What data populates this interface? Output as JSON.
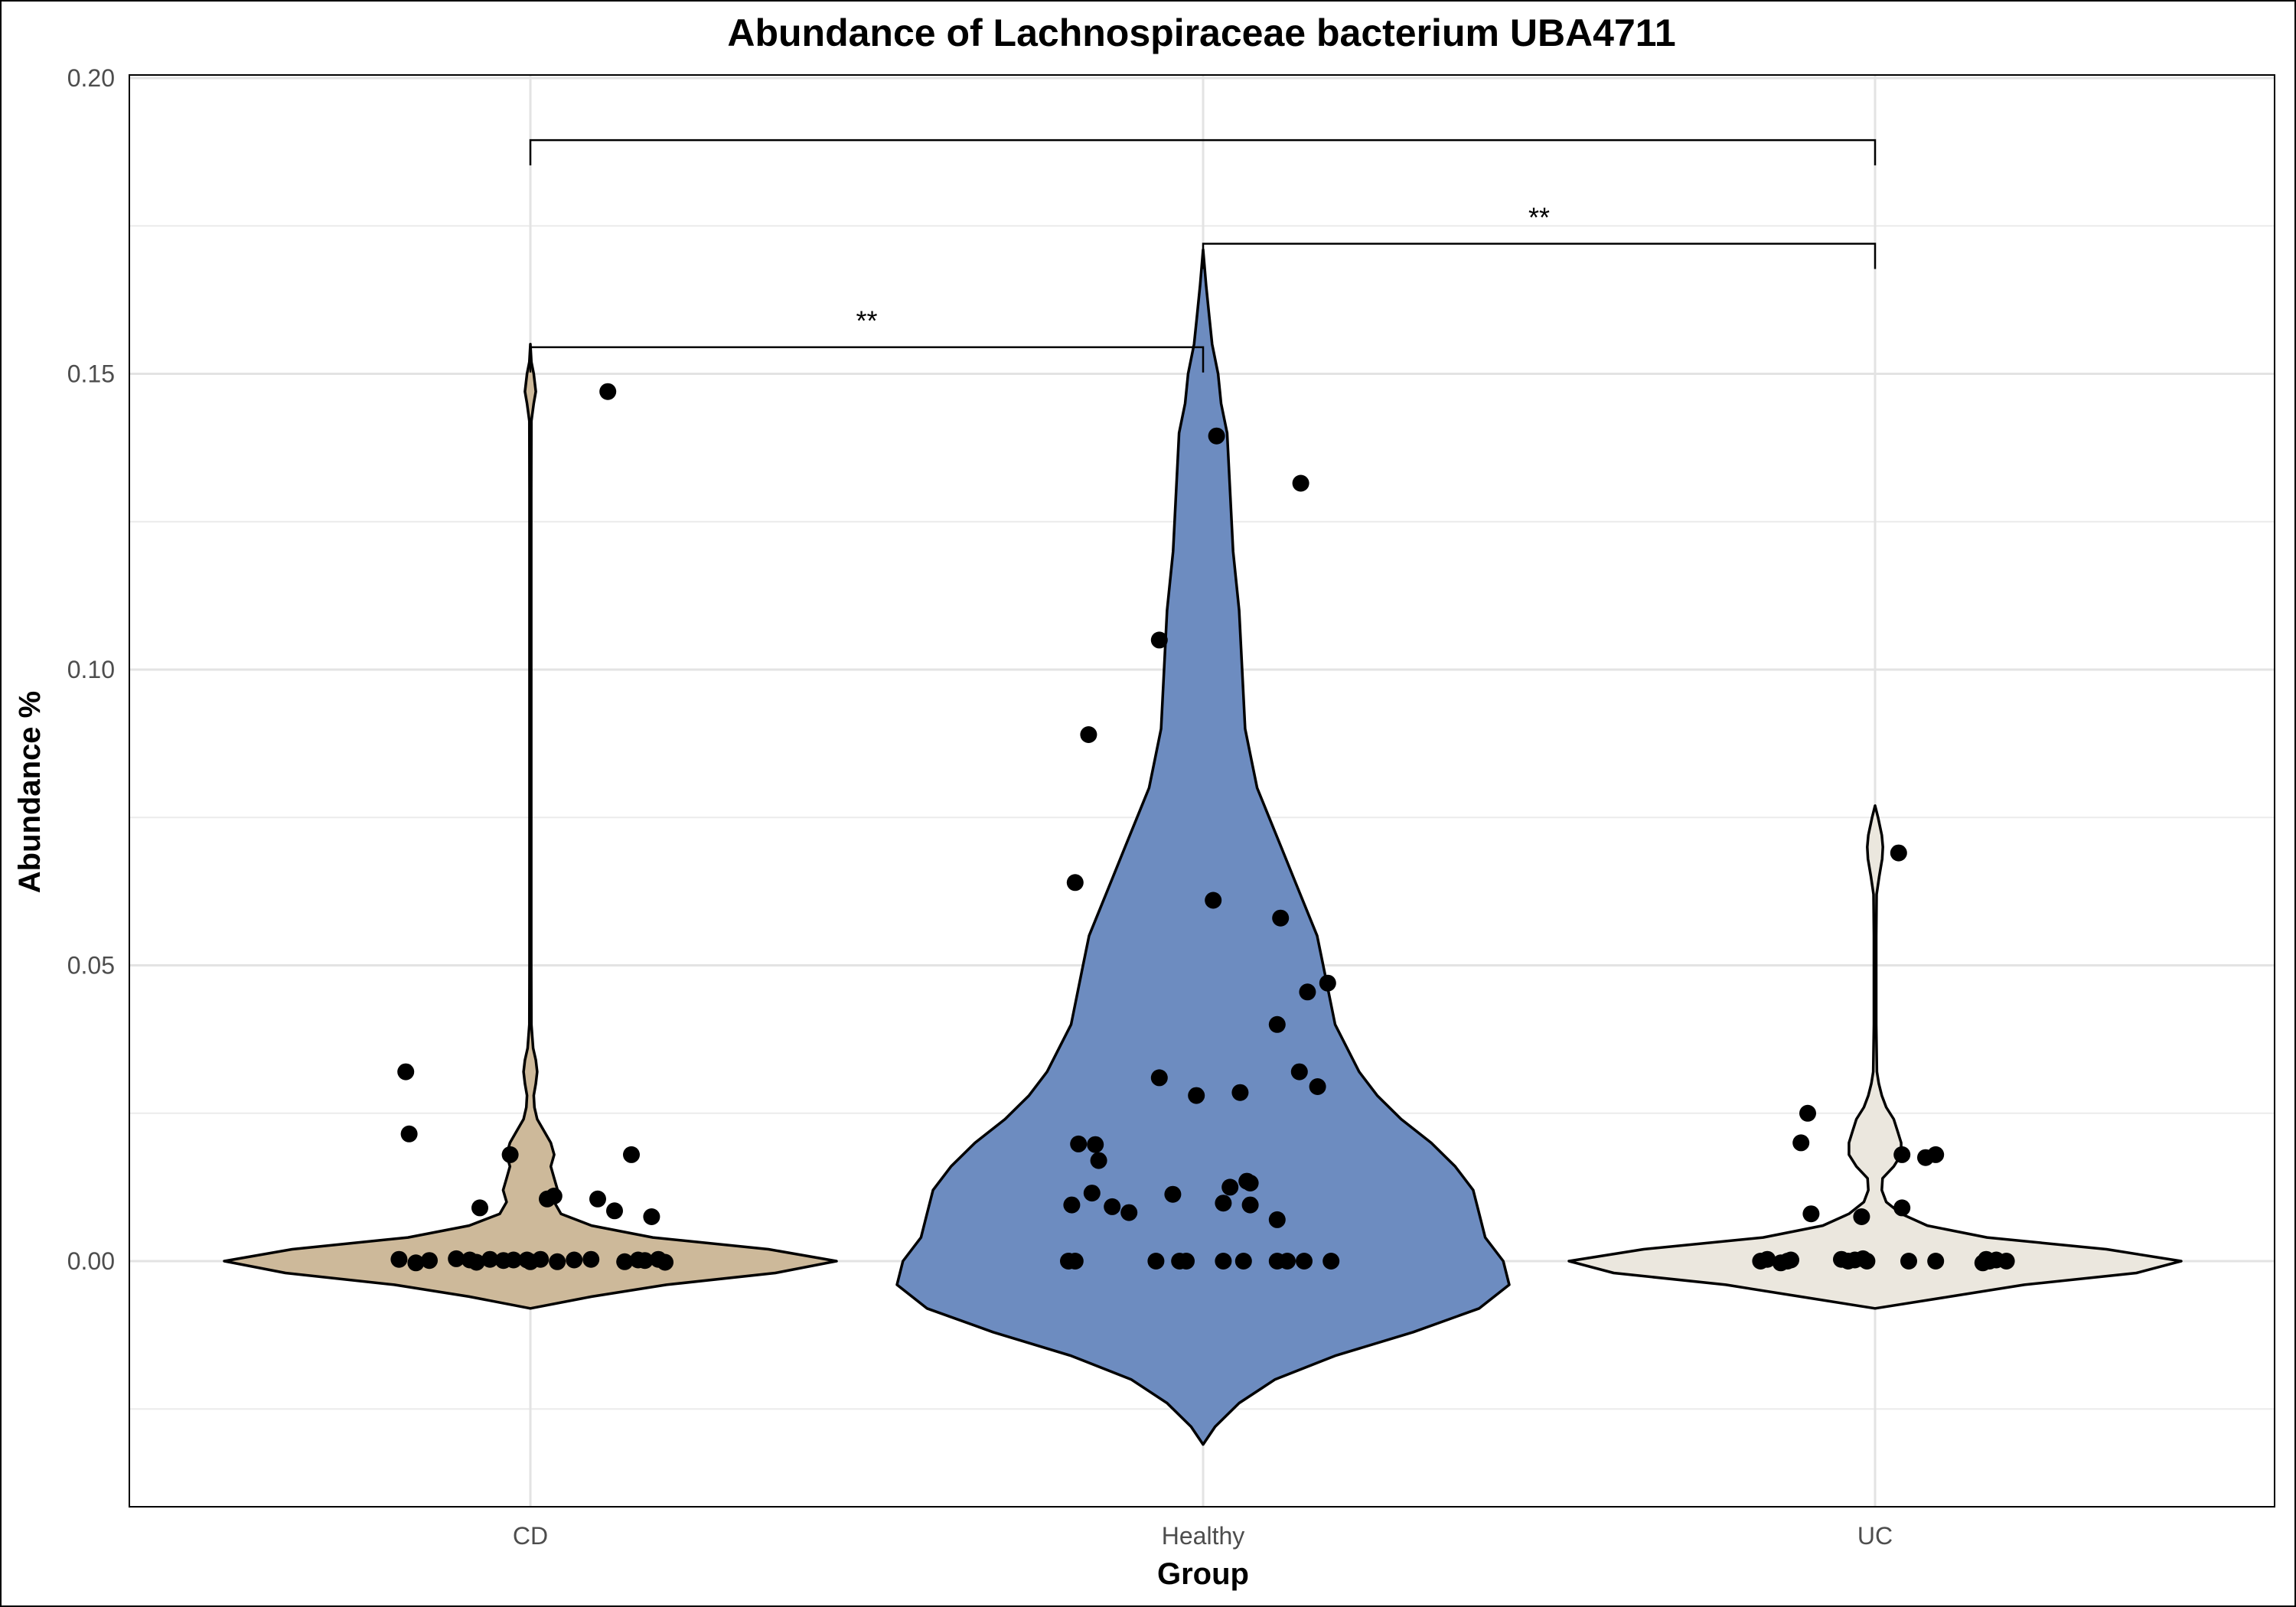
{
  "chart_data": {
    "type": "violin",
    "title": "Abundance of Lachnospiraceae bacterium UBA4711",
    "xlabel": "Group",
    "ylabel": "Abundance %",
    "ylim": [
      -0.0415,
      0.2
    ],
    "yticks": [
      "0.00",
      "0.05",
      "0.10",
      "0.15",
      "0.20"
    ],
    "ytick_values": [
      0.0,
      0.05,
      0.1,
      0.15,
      0.2
    ],
    "grid": true,
    "categories": [
      "CD",
      "Healthy",
      "UC"
    ],
    "colors": {
      "CD": "#cdb99a",
      "Healthy": "#6d8cc0",
      "UC": "#ebe7de"
    },
    "points": {
      "CD": [
        {
          "x": -0.185,
          "y": 0.032
        },
        {
          "x": -0.18,
          "y": 0.0215
        },
        {
          "x": -0.03,
          "y": 0.018
        },
        {
          "x": -0.075,
          "y": 0.009
        },
        {
          "x": 0.025,
          "y": 0.0105
        },
        {
          "x": 0.035,
          "y": 0.011
        },
        {
          "x": 0.1,
          "y": 0.0105
        },
        {
          "x": 0.125,
          "y": 0.0085
        },
        {
          "x": 0.18,
          "y": 0.0075
        },
        {
          "x": 0.15,
          "y": 0.018
        },
        {
          "x": 0.115,
          "y": 0.147
        },
        {
          "x": -0.195,
          "y": 0.0003
        },
        {
          "x": -0.17,
          "y": -0.0003
        },
        {
          "x": -0.15,
          "y": 0.0001
        },
        {
          "x": -0.11,
          "y": 0.0004
        },
        {
          "x": -0.09,
          "y": 0.0002
        },
        {
          "x": -0.08,
          "y": -0.0002
        },
        {
          "x": -0.06,
          "y": 0.0003
        },
        {
          "x": -0.04,
          "y": 0.0001
        },
        {
          "x": -0.025,
          "y": 0.0002
        },
        {
          "x": 0.015,
          "y": 0.0003
        },
        {
          "x": 0.04,
          "y": -0.0001
        },
        {
          "x": 0.065,
          "y": 0.0002
        },
        {
          "x": 0.09,
          "y": 0.0003
        },
        {
          "x": 0.14,
          "y": -0.0001
        },
        {
          "x": 0.16,
          "y": 0.0002
        },
        {
          "x": 0.19,
          "y": 0.0003
        },
        {
          "x": 0.2,
          "y": -0.0002
        },
        {
          "x": 0.17,
          "y": 0.0001
        },
        {
          "x": -0.005,
          "y": 0.0002
        },
        {
          "x": 0.0,
          "y": -0.0001
        }
      ],
      "Healthy": [
        {
          "x": 0.02,
          "y": 0.1395
        },
        {
          "x": 0.145,
          "y": 0.1315
        },
        {
          "x": -0.065,
          "y": 0.105
        },
        {
          "x": -0.17,
          "y": 0.089
        },
        {
          "x": -0.19,
          "y": 0.064
        },
        {
          "x": 0.015,
          "y": 0.061
        },
        {
          "x": 0.115,
          "y": 0.058
        },
        {
          "x": 0.185,
          "y": 0.047
        },
        {
          "x": 0.155,
          "y": 0.0455
        },
        {
          "x": 0.11,
          "y": 0.04
        },
        {
          "x": 0.143,
          "y": 0.032
        },
        {
          "x": 0.17,
          "y": 0.0295
        },
        {
          "x": -0.065,
          "y": 0.031
        },
        {
          "x": 0.055,
          "y": 0.0285
        },
        {
          "x": -0.01,
          "y": 0.028
        },
        {
          "x": -0.185,
          "y": 0.0198
        },
        {
          "x": -0.16,
          "y": 0.0197
        },
        {
          "x": -0.155,
          "y": 0.017
        },
        {
          "x": 0.065,
          "y": 0.0135
        },
        {
          "x": 0.07,
          "y": 0.0132
        },
        {
          "x": 0.04,
          "y": 0.0125
        },
        {
          "x": -0.045,
          "y": 0.0113
        },
        {
          "x": -0.165,
          "y": 0.0115
        },
        {
          "x": -0.195,
          "y": 0.0095
        },
        {
          "x": -0.135,
          "y": 0.0092
        },
        {
          "x": -0.11,
          "y": 0.0082
        },
        {
          "x": 0.03,
          "y": 0.0098
        },
        {
          "x": 0.07,
          "y": 0.0095
        },
        {
          "x": 0.11,
          "y": 0.007
        },
        {
          "x": -0.2,
          "y": 0.0
        },
        {
          "x": -0.19,
          "y": 0.0
        },
        {
          "x": -0.07,
          "y": 0.0
        },
        {
          "x": -0.035,
          "y": 0.0
        },
        {
          "x": -0.025,
          "y": 0.0
        },
        {
          "x": 0.03,
          "y": 0.0
        },
        {
          "x": 0.06,
          "y": 0.0
        },
        {
          "x": 0.11,
          "y": 0.0
        },
        {
          "x": 0.125,
          "y": 0.0
        },
        {
          "x": 0.15,
          "y": 0.0
        },
        {
          "x": 0.19,
          "y": 0.0
        }
      ],
      "UC": [
        {
          "x": 0.035,
          "y": 0.069
        },
        {
          "x": -0.1,
          "y": 0.025
        },
        {
          "x": -0.11,
          "y": 0.02
        },
        {
          "x": 0.04,
          "y": 0.018
        },
        {
          "x": 0.075,
          "y": 0.0175
        },
        {
          "x": 0.09,
          "y": 0.018
        },
        {
          "x": 0.04,
          "y": 0.009
        },
        {
          "x": -0.095,
          "y": 0.008
        },
        {
          "x": -0.02,
          "y": 0.0075
        },
        {
          "x": -0.17,
          "y": 0.0
        },
        {
          "x": -0.16,
          "y": 0.0003
        },
        {
          "x": -0.14,
          "y": -0.0003
        },
        {
          "x": -0.13,
          "y": 0.0
        },
        {
          "x": -0.125,
          "y": 0.0002
        },
        {
          "x": -0.05,
          "y": 0.0003
        },
        {
          "x": -0.04,
          "y": 0.0
        },
        {
          "x": -0.03,
          "y": 0.0002
        },
        {
          "x": -0.018,
          "y": 0.0004
        },
        {
          "x": -0.012,
          "y": 0.0
        },
        {
          "x": 0.05,
          "y": 0.0
        },
        {
          "x": 0.09,
          "y": 0.0
        },
        {
          "x": 0.16,
          "y": -0.0003
        },
        {
          "x": 0.165,
          "y": 0.0003
        },
        {
          "x": 0.17,
          "y": 0.0
        },
        {
          "x": 0.18,
          "y": 0.0002
        },
        {
          "x": 0.195,
          "y": 0.0
        }
      ]
    },
    "violins": {
      "CD": [
        [
          -0.008,
          0
        ],
        [
          -0.006,
          0.09
        ],
        [
          -0.004,
          0.2
        ],
        [
          -0.002,
          0.36
        ],
        [
          0.0,
          0.45
        ],
        [
          0.002,
          0.35
        ],
        [
          0.004,
          0.18
        ],
        [
          0.006,
          0.09
        ],
        [
          0.008,
          0.045
        ],
        [
          0.01,
          0.035
        ],
        [
          0.012,
          0.04
        ],
        [
          0.014,
          0.035
        ],
        [
          0.016,
          0.03
        ],
        [
          0.018,
          0.035
        ],
        [
          0.02,
          0.03
        ],
        [
          0.022,
          0.02
        ],
        [
          0.024,
          0.01
        ],
        [
          0.026,
          0.006
        ],
        [
          0.028,
          0.005
        ],
        [
          0.03,
          0.008
        ],
        [
          0.032,
          0.01
        ],
        [
          0.034,
          0.008
        ],
        [
          0.036,
          0.004
        ],
        [
          0.04,
          0.0015
        ],
        [
          0.05,
          0.0012
        ],
        [
          0.07,
          0.0012
        ],
        [
          0.1,
          0.0012
        ],
        [
          0.13,
          0.0012
        ],
        [
          0.142,
          0.0015
        ],
        [
          0.145,
          0.005
        ],
        [
          0.147,
          0.008
        ],
        [
          0.15,
          0.005
        ],
        [
          0.152,
          0.0015
        ],
        [
          0.155,
          0
        ]
      ],
      "Healthy": [
        [
          -0.031,
          0
        ],
        [
          -0.028,
          0.002
        ],
        [
          -0.024,
          0.006
        ],
        [
          -0.02,
          0.012
        ],
        [
          -0.016,
          0.022
        ],
        [
          -0.012,
          0.035
        ],
        [
          -0.008,
          0.046
        ],
        [
          -0.004,
          0.051
        ],
        [
          0.0,
          0.05
        ],
        [
          0.004,
          0.047
        ],
        [
          0.008,
          0.046
        ],
        [
          0.012,
          0.045
        ],
        [
          0.016,
          0.042
        ],
        [
          0.02,
          0.038
        ],
        [
          0.024,
          0.033
        ],
        [
          0.028,
          0.029
        ],
        [
          0.032,
          0.026
        ],
        [
          0.036,
          0.024
        ],
        [
          0.04,
          0.022
        ],
        [
          0.045,
          0.021
        ],
        [
          0.05,
          0.02
        ],
        [
          0.055,
          0.019
        ],
        [
          0.06,
          0.017
        ],
        [
          0.065,
          0.015
        ],
        [
          0.07,
          0.013
        ],
        [
          0.075,
          0.011
        ],
        [
          0.08,
          0.009
        ],
        [
          0.085,
          0.008
        ],
        [
          0.09,
          0.007
        ],
        [
          0.1,
          0.0065
        ],
        [
          0.11,
          0.006
        ],
        [
          0.12,
          0.005
        ],
        [
          0.13,
          0.0045
        ],
        [
          0.14,
          0.004
        ],
        [
          0.145,
          0.003
        ],
        [
          0.15,
          0.0025
        ],
        [
          0.155,
          0.0015
        ],
        [
          0.16,
          0.001
        ],
        [
          0.165,
          0.0005
        ],
        [
          0.171,
          0
        ]
      ],
      "UC": [
        [
          -0.008,
          0
        ],
        [
          -0.006,
          0.1
        ],
        [
          -0.004,
          0.2
        ],
        [
          -0.002,
          0.35
        ],
        [
          0.0,
          0.41
        ],
        [
          0.002,
          0.31
        ],
        [
          0.004,
          0.15
        ],
        [
          0.006,
          0.07
        ],
        [
          0.008,
          0.035
        ],
        [
          0.01,
          0.015
        ],
        [
          0.012,
          0.009
        ],
        [
          0.014,
          0.01
        ],
        [
          0.016,
          0.025
        ],
        [
          0.018,
          0.035
        ],
        [
          0.02,
          0.035
        ],
        [
          0.022,
          0.03
        ],
        [
          0.024,
          0.025
        ],
        [
          0.026,
          0.015
        ],
        [
          0.028,
          0.009
        ],
        [
          0.03,
          0.005
        ],
        [
          0.032,
          0.0025
        ],
        [
          0.04,
          0.0015
        ],
        [
          0.055,
          0.0015
        ],
        [
          0.062,
          0.002
        ],
        [
          0.065,
          0.0055
        ],
        [
          0.068,
          0.0095
        ],
        [
          0.07,
          0.0105
        ],
        [
          0.072,
          0.009
        ],
        [
          0.075,
          0.004
        ],
        [
          0.077,
          0
        ]
      ]
    },
    "comparisons": [
      {
        "from": "CD",
        "to": "Healthy",
        "y": 0.1545,
        "label": "**"
      },
      {
        "from": "Healthy",
        "to": "UC",
        "y": 0.172,
        "label": "**"
      },
      {
        "from": "CD",
        "to": "UC",
        "y": 0.1895,
        "label": ""
      }
    ]
  }
}
